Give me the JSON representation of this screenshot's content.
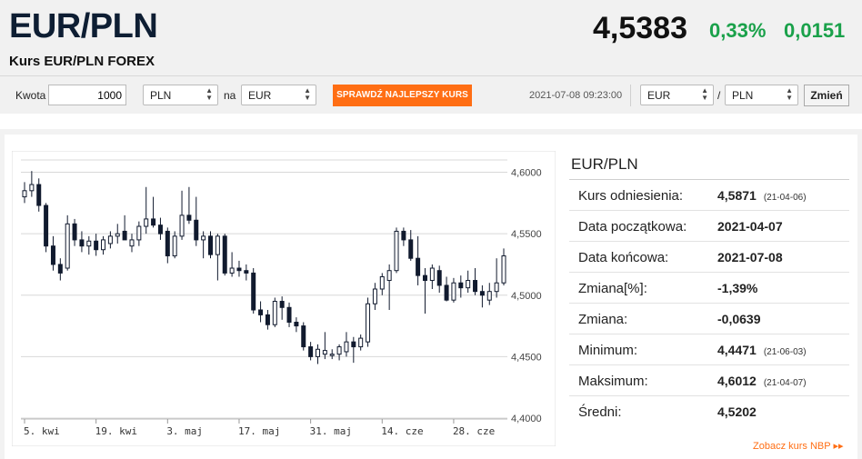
{
  "header": {
    "pair": "EUR/PLN",
    "subtitle": "Kurs EUR/PLN FOREX",
    "rate": "4,5383",
    "change_pct": "0,33%",
    "change_abs": "0,0151",
    "change_color": "#1aa14a"
  },
  "toolbar": {
    "amount_label": "Kwota",
    "amount_value": "1000",
    "from_currency": "PLN",
    "to_label": "na",
    "to_currency": "EUR",
    "best_rate_button": "SPRAWDŹ NAJLEPSZY KURS",
    "timestamp": "2021-07-08 09:23:00",
    "pair_base": "EUR",
    "pair_separator": "/",
    "pair_quote": "PLN",
    "change_button": "Zmień",
    "accent_color": "#ff6e14"
  },
  "info": {
    "title": "EUR/PLN",
    "rows": [
      {
        "label": "Kurs odniesienia:",
        "value": "4,5871",
        "date": "(21-04-06)"
      },
      {
        "label": "Data początkowa:",
        "value": "2021-04-07",
        "date": ""
      },
      {
        "label": "Data końcowa:",
        "value": "2021-07-08",
        "date": ""
      },
      {
        "label": "Zmiana[%]:",
        "value": "-1,39%",
        "date": ""
      },
      {
        "label": "Zmiana:",
        "value": "-0,0639",
        "date": ""
      },
      {
        "label": "Minimum:",
        "value": "4,4471",
        "date": "(21-06-03)"
      },
      {
        "label": "Maksimum:",
        "value": "4,6012",
        "date": "(21-04-07)"
      },
      {
        "label": "Średni:",
        "value": "4,5202",
        "date": ""
      }
    ],
    "nbp_link": "Zobacz kurs NBP",
    "nbp_arrow": "▸▸"
  },
  "chart_data": {
    "type": "candlestick",
    "ylim": [
      4.4,
      4.61
    ],
    "yticks": [
      "4,6000",
      "4,5500",
      "4,5000",
      "4,4500",
      "4,4000"
    ],
    "ytick_values": [
      4.6,
      4.55,
      4.5,
      4.45,
      4.4
    ],
    "xticks": [
      "5. kwi",
      "19. kwi",
      "3. maj",
      "17. maj",
      "31. maj",
      "14. cze",
      "28. cze"
    ],
    "xtick_index": [
      0,
      10,
      20,
      30,
      40,
      50,
      60
    ],
    "grid": true,
    "up_color": "#ffffff",
    "down_color": "#111a2e",
    "candles": [
      {
        "o": 4.58,
        "h": 4.592,
        "l": 4.575,
        "c": 4.585
      },
      {
        "o": 4.585,
        "h": 4.601,
        "l": 4.58,
        "c": 4.59
      },
      {
        "o": 4.59,
        "h": 4.595,
        "l": 4.568,
        "c": 4.573
      },
      {
        "o": 4.573,
        "h": 4.575,
        "l": 4.535,
        "c": 4.54
      },
      {
        "o": 4.54,
        "h": 4.548,
        "l": 4.52,
        "c": 4.525
      },
      {
        "o": 4.525,
        "h": 4.53,
        "l": 4.512,
        "c": 4.518
      },
      {
        "o": 4.522,
        "h": 4.565,
        "l": 4.52,
        "c": 4.558
      },
      {
        "o": 4.558,
        "h": 4.562,
        "l": 4.54,
        "c": 4.545
      },
      {
        "o": 4.545,
        "h": 4.552,
        "l": 4.535,
        "c": 4.54
      },
      {
        "o": 4.54,
        "h": 4.548,
        "l": 4.533,
        "c": 4.544
      },
      {
        "o": 4.544,
        "h": 4.55,
        "l": 4.532,
        "c": 4.537
      },
      {
        "o": 4.537,
        "h": 4.548,
        "l": 4.533,
        "c": 4.545
      },
      {
        "o": 4.542,
        "h": 4.552,
        "l": 4.538,
        "c": 4.548
      },
      {
        "o": 4.548,
        "h": 4.558,
        "l": 4.542,
        "c": 4.55
      },
      {
        "o": 4.552,
        "h": 4.565,
        "l": 4.545,
        "c": 4.545
      },
      {
        "o": 4.54,
        "h": 4.55,
        "l": 4.535,
        "c": 4.545
      },
      {
        "o": 4.545,
        "h": 4.56,
        "l": 4.54,
        "c": 4.556
      },
      {
        "o": 4.556,
        "h": 4.588,
        "l": 4.55,
        "c": 4.562
      },
      {
        "o": 4.562,
        "h": 4.58,
        "l": 4.555,
        "c": 4.557
      },
      {
        "o": 4.557,
        "h": 4.563,
        "l": 4.545,
        "c": 4.55
      },
      {
        "o": 4.552,
        "h": 4.555,
        "l": 4.526,
        "c": 4.532
      },
      {
        "o": 4.532,
        "h": 4.552,
        "l": 4.53,
        "c": 4.548
      },
      {
        "o": 4.548,
        "h": 4.585,
        "l": 4.545,
        "c": 4.565
      },
      {
        "o": 4.565,
        "h": 4.588,
        "l": 4.558,
        "c": 4.561
      },
      {
        "o": 4.561,
        "h": 4.58,
        "l": 4.54,
        "c": 4.545
      },
      {
        "o": 4.545,
        "h": 4.552,
        "l": 4.53,
        "c": 4.548
      },
      {
        "o": 4.548,
        "h": 4.552,
        "l": 4.53,
        "c": 4.533
      },
      {
        "o": 4.533,
        "h": 4.55,
        "l": 4.512,
        "c": 4.548
      },
      {
        "o": 4.548,
        "h": 4.55,
        "l": 4.516,
        "c": 4.518
      },
      {
        "o": 4.518,
        "h": 4.535,
        "l": 4.515,
        "c": 4.522
      },
      {
        "o": 4.522,
        "h": 4.528,
        "l": 4.515,
        "c": 4.52
      },
      {
        "o": 4.52,
        "h": 4.525,
        "l": 4.512,
        "c": 4.518
      },
      {
        "o": 4.518,
        "h": 4.522,
        "l": 4.485,
        "c": 4.488
      },
      {
        "o": 4.488,
        "h": 4.495,
        "l": 4.478,
        "c": 4.484
      },
      {
        "o": 4.484,
        "h": 4.488,
        "l": 4.472,
        "c": 4.476
      },
      {
        "o": 4.476,
        "h": 4.498,
        "l": 4.474,
        "c": 4.495
      },
      {
        "o": 4.495,
        "h": 4.499,
        "l": 4.48,
        "c": 4.49
      },
      {
        "o": 4.49,
        "h": 4.494,
        "l": 4.474,
        "c": 4.478
      },
      {
        "o": 4.478,
        "h": 4.482,
        "l": 4.47,
        "c": 4.475
      },
      {
        "o": 4.475,
        "h": 4.478,
        "l": 4.455,
        "c": 4.458
      },
      {
        "o": 4.458,
        "h": 4.462,
        "l": 4.447,
        "c": 4.45
      },
      {
        "o": 4.45,
        "h": 4.46,
        "l": 4.444,
        "c": 4.456
      },
      {
        "o": 4.452,
        "h": 4.47,
        "l": 4.448,
        "c": 4.455
      },
      {
        "o": 4.452,
        "h": 4.456,
        "l": 4.448,
        "c": 4.452
      },
      {
        "o": 4.452,
        "h": 4.46,
        "l": 4.447,
        "c": 4.458
      },
      {
        "o": 4.454,
        "h": 4.47,
        "l": 4.45,
        "c": 4.462
      },
      {
        "o": 4.462,
        "h": 4.466,
        "l": 4.445,
        "c": 4.458
      },
      {
        "o": 4.458,
        "h": 4.468,
        "l": 4.455,
        "c": 4.465
      },
      {
        "o": 4.462,
        "h": 4.498,
        "l": 4.458,
        "c": 4.493
      },
      {
        "o": 4.493,
        "h": 4.51,
        "l": 4.488,
        "c": 4.505
      },
      {
        "o": 4.505,
        "h": 4.518,
        "l": 4.5,
        "c": 4.515
      },
      {
        "o": 4.512,
        "h": 4.525,
        "l": 4.488,
        "c": 4.52
      },
      {
        "o": 4.52,
        "h": 4.555,
        "l": 4.518,
        "c": 4.552
      },
      {
        "o": 4.552,
        "h": 4.555,
        "l": 4.54,
        "c": 4.545
      },
      {
        "o": 4.545,
        "h": 4.553,
        "l": 4.528,
        "c": 4.53
      },
      {
        "o": 4.53,
        "h": 4.548,
        "l": 4.508,
        "c": 4.516
      },
      {
        "o": 4.516,
        "h": 4.522,
        "l": 4.485,
        "c": 4.512
      },
      {
        "o": 4.512,
        "h": 4.525,
        "l": 4.505,
        "c": 4.522
      },
      {
        "o": 4.52,
        "h": 4.524,
        "l": 4.502,
        "c": 4.508
      },
      {
        "o": 4.508,
        "h": 4.515,
        "l": 4.495,
        "c": 4.496
      },
      {
        "o": 4.496,
        "h": 4.514,
        "l": 4.494,
        "c": 4.51
      },
      {
        "o": 4.51,
        "h": 4.516,
        "l": 4.498,
        "c": 4.506
      },
      {
        "o": 4.506,
        "h": 4.52,
        "l": 4.502,
        "c": 4.512
      },
      {
        "o": 4.512,
        "h": 4.522,
        "l": 4.5,
        "c": 4.503
      },
      {
        "o": 4.503,
        "h": 4.508,
        "l": 4.49,
        "c": 4.5
      },
      {
        "o": 4.496,
        "h": 4.51,
        "l": 4.492,
        "c": 4.503
      },
      {
        "o": 4.503,
        "h": 4.53,
        "l": 4.498,
        "c": 4.51
      },
      {
        "o": 4.51,
        "h": 4.538,
        "l": 4.508,
        "c": 4.532
      }
    ]
  }
}
